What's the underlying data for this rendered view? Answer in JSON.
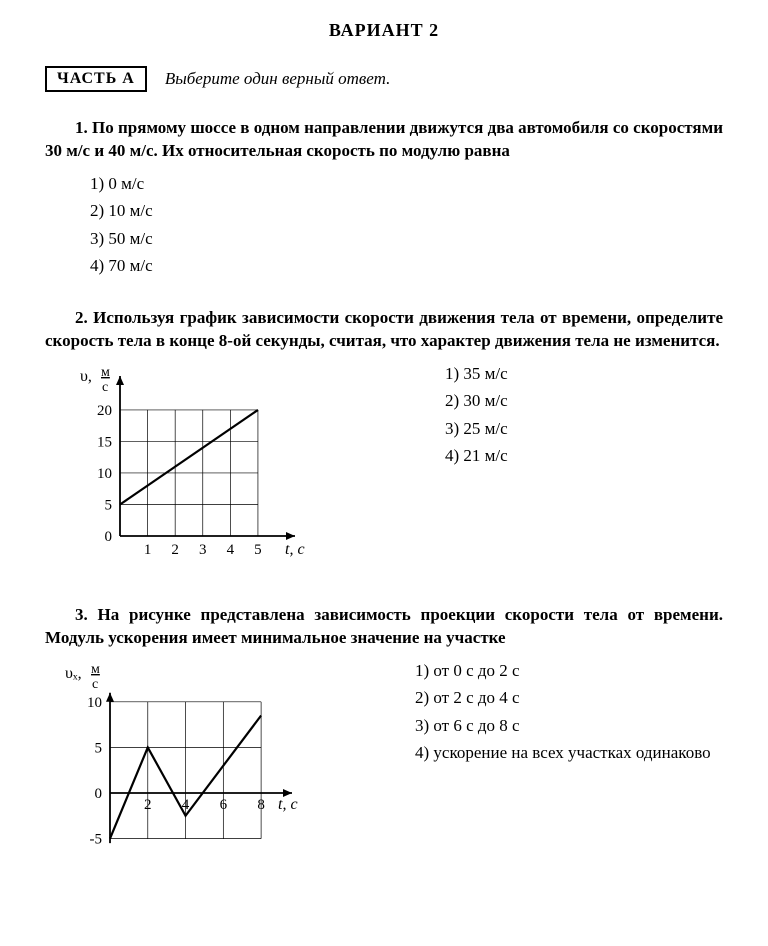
{
  "title": "ВАРИАНТ 2",
  "section": {
    "label": "ЧАСТЬ А",
    "instr": "Выберите один верный ответ."
  },
  "q1": {
    "text": "1. По прямому шоссе в одном направлении движутся два авто­мобиля со скоростями 30 м/с и 40 м/с. Их относительная скорость по модулю равна",
    "opts": [
      "1) 0 м/с",
      "2) 10 м/с",
      "3) 50 м/с",
      "4) 70 м/с"
    ]
  },
  "q2": {
    "text": "2. Используя график зависимости скорости движения тела от времени, определите скорость тела в конце 8-ой секунды, счи­тая, что характер движения тела не изменится.",
    "opts": [
      "1) 35 м/с",
      "2) 30 м/с",
      "3) 25 м/с",
      "4) 21 м/с"
    ],
    "chart": {
      "type": "line",
      "ylabel_top": "υ,",
      "ylabel_bot": "м",
      "ylabel_denom": "с",
      "xlabel": "t, c",
      "xlim": [
        0,
        5.8
      ],
      "ylim": [
        0,
        23
      ],
      "xticks": [
        1,
        2,
        3,
        4,
        5
      ],
      "yticks": [
        0,
        5,
        10,
        15,
        20
      ],
      "line": [
        [
          0,
          5
        ],
        [
          5,
          20
        ]
      ],
      "grid_xmax": 5,
      "grid_ymax": 20,
      "colors": {
        "grid": "#000000",
        "line": "#000000",
        "axis": "#000000"
      },
      "line_width": 2.2,
      "grid_width": 0.7
    }
  },
  "q3": {
    "text": "3. На рисунке представлена зависимость проекции скорости тела от времени. Модуль ускорения имеет минимальное значение на участке",
    "opts": [
      "1) от 0 с до 2 с",
      "2) от 2 с до 4 с",
      "3) от 6 с до 8 с",
      "4) ускорение на всех участках одинаково"
    ],
    "chart": {
      "type": "line",
      "ylabel_top": "υₓ,",
      "ylabel_bot": "м",
      "ylabel_denom": "с",
      "xlabel": "t, c",
      "xlim": [
        0,
        9
      ],
      "ylim": [
        -6,
        11
      ],
      "xticks": [
        2,
        4,
        6,
        8
      ],
      "yticks": [
        -5,
        0,
        5,
        10
      ],
      "line": [
        [
          0,
          -5
        ],
        [
          2,
          5
        ],
        [
          4,
          -2.5
        ],
        [
          8,
          8.5
        ]
      ],
      "grid_x": [
        2,
        4,
        6,
        8
      ],
      "grid_y": [
        -5,
        5,
        10
      ],
      "colors": {
        "grid": "#000000",
        "line": "#000000",
        "axis": "#000000"
      },
      "line_width": 2.2,
      "grid_width": 0.7
    }
  }
}
